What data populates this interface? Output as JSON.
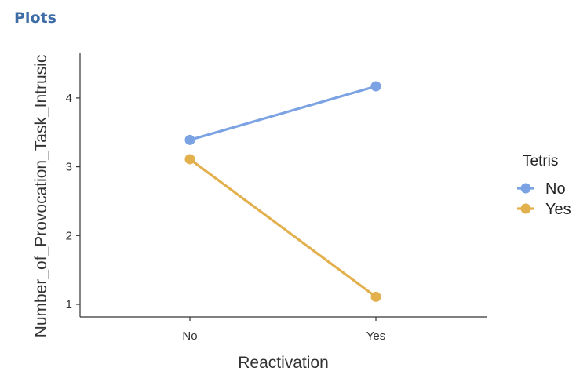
{
  "header": {
    "title": "Plots"
  },
  "chart_data": {
    "type": "line",
    "xlabel": "Reactivation",
    "ylabel": "Number_of_Provocation_Task_Intrusic",
    "categories": [
      "No",
      "Yes"
    ],
    "ylim": [
      0.8,
      4.7
    ],
    "yticks": [
      1,
      2,
      3,
      4
    ],
    "legend": {
      "title": "Tetris",
      "placement": "right"
    },
    "series": [
      {
        "name": "No",
        "color": "#7ba3e3",
        "values": [
          3.39,
          4.17
        ]
      },
      {
        "name": "Yes",
        "color": "#e3b04e",
        "values": [
          3.11,
          1.11
        ]
      }
    ],
    "grid": false
  }
}
